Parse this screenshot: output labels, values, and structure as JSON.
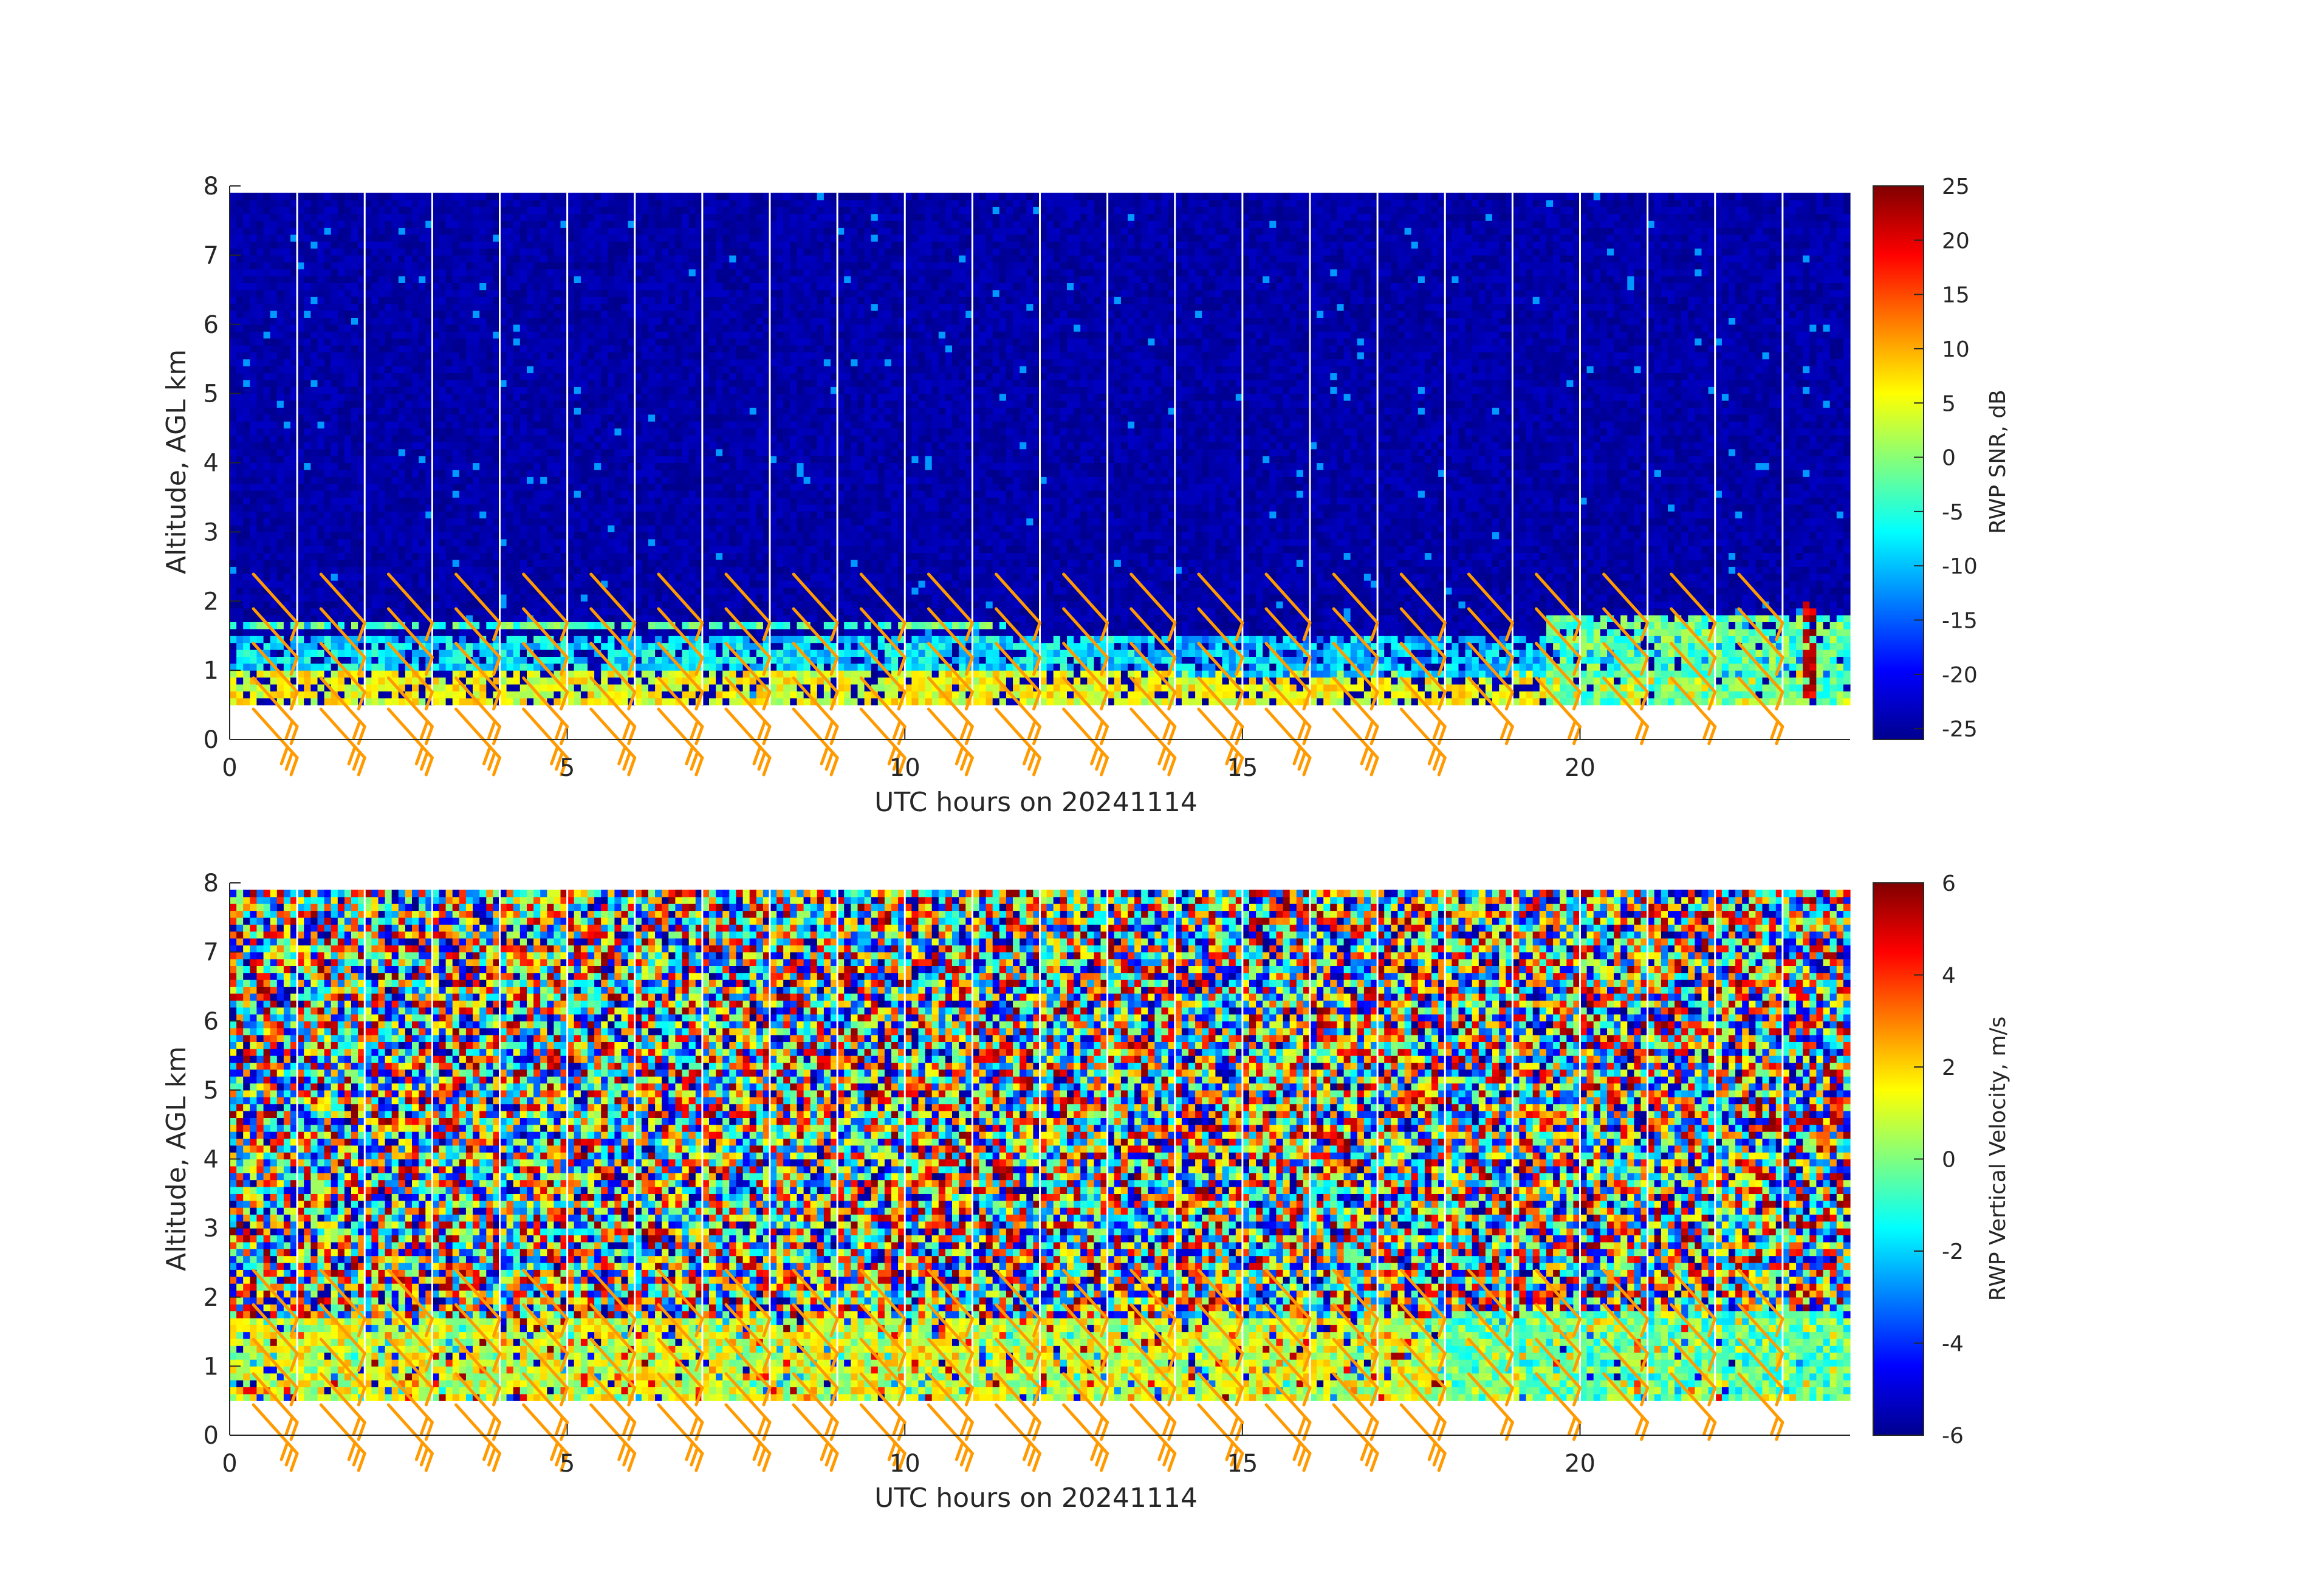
{
  "chart_data": [
    {
      "type": "heatmap",
      "title": "",
      "xlabel": "UTC hours on 20241114",
      "ylabel": "Altitude, AGL km",
      "xlim": [
        0,
        24
      ],
      "ylim": [
        0,
        8
      ],
      "x_ticks": [
        "0",
        "5",
        "10",
        "15",
        "20"
      ],
      "y_ticks": [
        "0",
        "1",
        "2",
        "3",
        "4",
        "5",
        "6",
        "7",
        "8"
      ],
      "data_altitude_range_km": [
        0.5,
        7.9
      ],
      "colorbar": {
        "label": "RWP SNR, dB",
        "range": [
          -26,
          25
        ],
        "ticks": [
          "-25",
          "-20",
          "-15",
          "-10",
          "-5",
          "0",
          "5",
          "10",
          "15",
          "20",
          "25"
        ]
      },
      "background_value": -24,
      "features": [
        {
          "description": "near-surface high SNR layer",
          "x_range": [
            0,
            24
          ],
          "alt_range_km": [
            0.5,
            1.0
          ],
          "value": 5
        },
        {
          "description": "low-level moderate SNR",
          "x_range": [
            0,
            14
          ],
          "alt_range_km": [
            1.0,
            1.5
          ],
          "value": -8
        },
        {
          "description": "thin layer near 1.6 km",
          "x_range": [
            0,
            11.5
          ],
          "alt_range_km": [
            1.52,
            1.68
          ],
          "value": -3
        },
        {
          "description": "moderate SNR band",
          "x_range": [
            14,
            24
          ],
          "alt_range_km": [
            0.9,
            1.5
          ],
          "value": -10
        },
        {
          "description": "enhanced SNR plume",
          "x_range": [
            19.5,
            24
          ],
          "alt_range_km": [
            0.5,
            1.8
          ],
          "value": -2
        },
        {
          "description": "spike",
          "x_range": [
            23.3,
            23.5
          ],
          "alt_range_km": [
            0.5,
            2.0
          ],
          "value": 22
        }
      ],
      "wind_barb_times_utc": [
        1,
        2,
        3,
        4,
        5,
        6,
        7,
        8,
        9,
        10,
        11,
        12,
        13,
        14,
        15,
        16,
        17,
        18,
        19,
        20,
        21,
        22,
        23
      ],
      "barb_color": "#ff9a00"
    },
    {
      "type": "heatmap",
      "title": "",
      "xlabel": "UTC hours on 20241114",
      "ylabel": "Altitude, AGL km",
      "xlim": [
        0,
        24
      ],
      "ylim": [
        0,
        8
      ],
      "x_ticks": [
        "0",
        "5",
        "10",
        "15",
        "20"
      ],
      "y_ticks": [
        "0",
        "1",
        "2",
        "3",
        "4",
        "5",
        "6",
        "7",
        "8"
      ],
      "data_altitude_range_km": [
        0.5,
        7.9
      ],
      "colorbar": {
        "label": "RWP Vertical Velocity, m/s",
        "range": [
          -6,
          6
        ],
        "ticks": [
          "-6",
          "-4",
          "-2",
          "0",
          "2",
          "4",
          "6"
        ]
      },
      "background": "noisy, values spanning -6 to 6",
      "features": [
        {
          "description": "coherent low-level velocities",
          "x_range": [
            0,
            24
          ],
          "alt_range_km": [
            0.5,
            1.7
          ],
          "value": 1
        },
        {
          "description": "late-day low-level region",
          "x_range": [
            18,
            24
          ],
          "alt_range_km": [
            0.5,
            1.8
          ],
          "value": -0.5
        }
      ],
      "wind_barb_times_utc": [
        1,
        2,
        3,
        4,
        5,
        6,
        7,
        8,
        9,
        10,
        11,
        12,
        13,
        14,
        15,
        16,
        17,
        18,
        19,
        20,
        21,
        22,
        23
      ],
      "barb_color": "#ff9a00"
    }
  ]
}
